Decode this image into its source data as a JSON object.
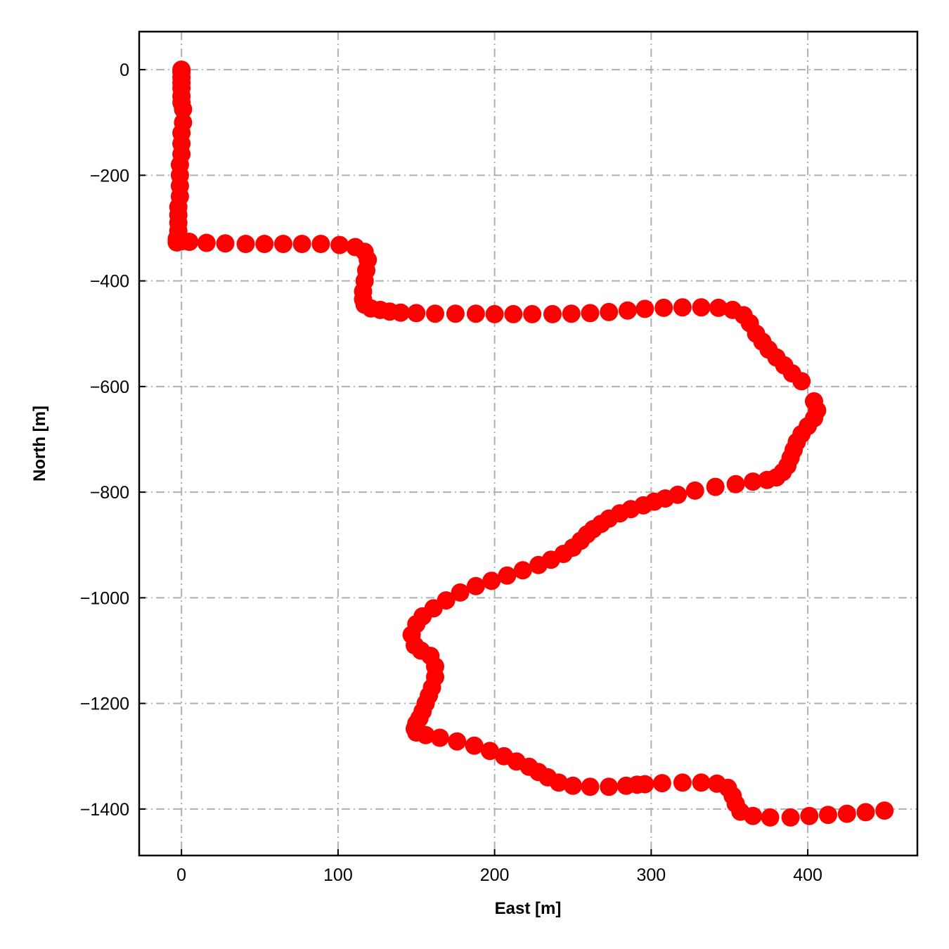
{
  "chart_data": {
    "type": "scatter",
    "title": "",
    "xlabel": "East [m]",
    "ylabel": "North [m]",
    "xlim": [
      -27,
      470
    ],
    "ylim": [
      -1488,
      72
    ],
    "xticks": [
      0,
      100,
      200,
      300,
      400
    ],
    "yticks": [
      0,
      -200,
      -400,
      -600,
      -800,
      -1000,
      -1200,
      -1400
    ],
    "xtick_labels": [
      "0",
      "100",
      "200",
      "300",
      "400"
    ],
    "ytick_labels": [
      "0",
      "−200",
      "−400",
      "−600",
      "−800",
      "−1000",
      "−1200",
      "−1400"
    ],
    "grid": true,
    "marker_color": "#ff0000",
    "series": [
      {
        "x": [
          0,
          0,
          0,
          0,
          0,
          0,
          0,
          1,
          1,
          0,
          0,
          0,
          -1,
          -1,
          -1,
          -1,
          -2,
          -2,
          -2,
          -2,
          -2,
          -3,
          -3,
          -3,
          -3,
          -3,
          -3,
          -3,
          -2,
          0,
          5,
          16,
          28,
          41,
          53,
          65,
          77,
          89,
          101,
          111,
          117,
          119,
          118,
          117,
          116,
          116,
          117,
          121,
          127,
          133,
          140,
          150,
          162,
          175,
          188,
          200,
          212,
          224,
          237,
          249,
          261,
          273,
          285,
          296,
          308,
          320,
          332,
          343,
          352,
          359,
          363,
          367,
          371,
          375,
          380,
          385,
          390,
          396,
          404,
          406,
          404,
          400,
          396,
          393,
          391,
          389,
          387,
          384,
          380,
          374,
          365,
          354,
          341,
          328,
          317,
          309,
          302,
          295,
          287,
          280,
          273,
          268,
          263,
          259,
          255,
          250,
          244,
          236,
          228,
          218,
          208,
          198,
          188,
          178,
          169,
          161,
          154,
          150,
          147,
          149,
          153,
          159,
          162,
          162,
          160,
          158,
          156,
          154,
          152,
          150,
          149,
          150,
          156,
          165,
          176,
          187,
          197,
          206,
          214,
          222,
          228,
          234,
          241,
          250,
          261,
          273,
          284,
          291,
          296,
          307,
          320,
          332,
          342,
          349,
          352,
          354,
          357,
          365,
          376,
          389,
          401,
          413,
          425,
          437,
          449
        ],
        "y": [
          0,
          -5,
          -15,
          -25,
          -35,
          -50,
          -62,
          -75,
          -100,
          -120,
          -140,
          -160,
          -180,
          -200,
          -220,
          -240,
          -260,
          -275,
          -290,
          -305,
          -315,
          -320,
          -322,
          -324,
          -326,
          -326,
          -327,
          -327,
          -326,
          -325,
          -326,
          -328,
          -329,
          -330,
          -330,
          -330,
          -330,
          -330,
          -332,
          -336,
          -345,
          -360,
          -380,
          -400,
          -420,
          -435,
          -445,
          -452,
          -455,
          -458,
          -460,
          -461,
          -462,
          -462,
          -462,
          -463,
          -463,
          -463,
          -463,
          -462,
          -461,
          -459,
          -456,
          -453,
          -451,
          -450,
          -450,
          -451,
          -455,
          -465,
          -480,
          -500,
          -515,
          -530,
          -545,
          -560,
          -575,
          -590,
          -628,
          -645,
          -660,
          -675,
          -690,
          -705,
          -720,
          -735,
          -750,
          -762,
          -772,
          -777,
          -780,
          -785,
          -790,
          -797,
          -805,
          -812,
          -818,
          -825,
          -832,
          -840,
          -850,
          -860,
          -870,
          -880,
          -892,
          -905,
          -917,
          -928,
          -938,
          -948,
          -958,
          -968,
          -978,
          -990,
          -1005,
          -1020,
          -1035,
          -1050,
          -1070,
          -1090,
          -1100,
          -1110,
          -1130,
          -1150,
          -1170,
          -1185,
          -1200,
          -1215,
          -1228,
          -1238,
          -1248,
          -1255,
          -1260,
          -1265,
          -1272,
          -1280,
          -1290,
          -1300,
          -1310,
          -1320,
          -1330,
          -1340,
          -1350,
          -1356,
          -1358,
          -1358,
          -1356,
          -1354,
          -1353,
          -1351,
          -1350,
          -1350,
          -1352,
          -1360,
          -1375,
          -1390,
          -1405,
          -1413,
          -1416,
          -1416,
          -1413,
          -1411,
          -1409,
          -1406,
          -1403
        ]
      }
    ]
  }
}
